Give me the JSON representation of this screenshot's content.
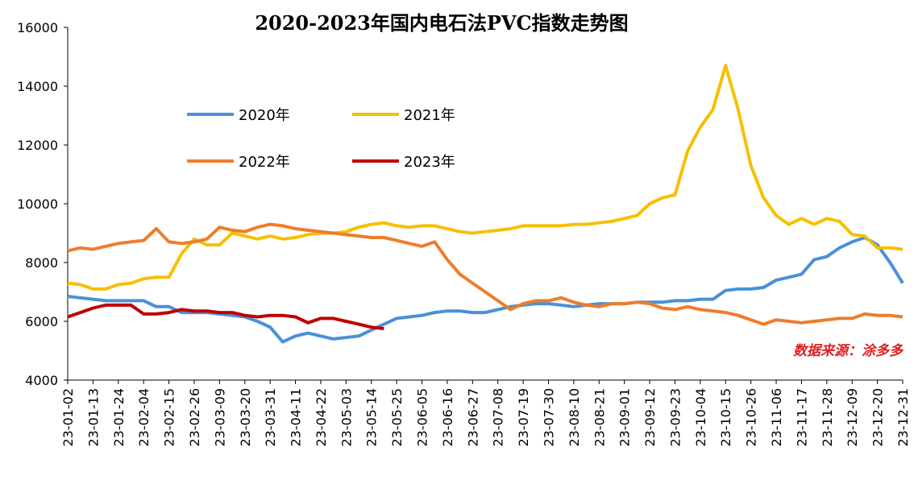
{
  "chart_data": {
    "type": "line",
    "title": "2020-2023年国内电石法PVC指数走势图",
    "annotation": "数据来源：涂多多",
    "categories": [
      "23-01-02",
      null,
      "23-01-13",
      null,
      "23-01-24",
      null,
      "23-02-04",
      null,
      "23-02-15",
      null,
      "23-02-26",
      null,
      "23-03-09",
      null,
      "23-03-20",
      null,
      "23-03-31",
      null,
      "23-04-11",
      null,
      "23-04-22",
      null,
      "23-05-03",
      null,
      "23-05-14",
      null,
      "23-05-25",
      null,
      "23-06-05",
      null,
      "23-06-16",
      null,
      "23-06-27",
      null,
      "23-07-08",
      null,
      "23-07-19",
      null,
      "23-07-30",
      null,
      "23-08-10",
      null,
      "23-08-21",
      null,
      "23-09-01",
      null,
      "23-09-12",
      null,
      "23-09-23",
      null,
      "23-10-04",
      null,
      "23-10-15",
      null,
      "23-10-26",
      null,
      "23-11-06",
      null,
      "23-11-17",
      null,
      "23-11-28",
      null,
      "23-12-09",
      null,
      "23-12-20",
      null,
      "23-12-31"
    ],
    "series": [
      {
        "name": "2020年",
        "color": "#4a90d9",
        "values": [
          6850,
          6800,
          6750,
          6700,
          6700,
          6700,
          6700,
          6500,
          6500,
          6300,
          6300,
          6300,
          6250,
          6200,
          6150,
          6000,
          5800,
          5300,
          5500,
          5600,
          5500,
          5400,
          5450,
          5500,
          5700,
          5900,
          6100,
          6150,
          6200,
          6300,
          6350,
          6350,
          6300,
          6300,
          6400,
          6500,
          6550,
          6600,
          6600,
          6550,
          6500,
          6550,
          6600,
          6600,
          6600,
          6650,
          6650,
          6650,
          6700,
          6700,
          6750,
          6750,
          7050,
          7100,
          7100,
          7150,
          7400,
          7500,
          7600,
          8100,
          8200,
          8500,
          8700,
          8850,
          8600,
          8000,
          7300
        ]
      },
      {
        "name": "2021年",
        "color": "#f5c000",
        "values": [
          7300,
          7250,
          7100,
          7100,
          7250,
          7300,
          7450,
          7500,
          7500,
          8300,
          8800,
          8600,
          8600,
          9000,
          8900,
          8800,
          8900,
          8800,
          8850,
          8950,
          9000,
          9000,
          9050,
          9200,
          9300,
          9350,
          9250,
          9200,
          9250,
          9250,
          9150,
          9050,
          9000,
          9050,
          9100,
          9150,
          9250,
          9250,
          9250,
          9250,
          9300,
          9300,
          9350,
          9400,
          9500,
          9600,
          10000,
          10200,
          10300,
          11800,
          12600,
          13200,
          14700,
          13200,
          11300,
          10200,
          9600,
          9300,
          9500,
          9300,
          9500,
          9400,
          8950,
          8900,
          8500,
          8500,
          8450
        ]
      },
      {
        "name": "2022年",
        "color": "#ee7d2c",
        "values": [
          8400,
          8500,
          8450,
          8550,
          8650,
          8700,
          8750,
          9150,
          8700,
          8650,
          8700,
          8800,
          9200,
          9100,
          9050,
          9200,
          9300,
          9250,
          9150,
          9100,
          9050,
          9000,
          8950,
          8900,
          8850,
          8850,
          8750,
          8650,
          8550,
          8700,
          8100,
          7600,
          7300,
          7000,
          6700,
          6400,
          6600,
          6700,
          6700,
          6800,
          6650,
          6550,
          6500,
          6600,
          6600,
          6650,
          6600,
          6450,
          6400,
          6500,
          6400,
          6350,
          6300,
          6200,
          6050,
          5900,
          6050,
          6000,
          5950,
          6000,
          6050,
          6100,
          6100,
          6250,
          6200,
          6200,
          6150
        ]
      },
      {
        "name": "2023年",
        "color": "#c00000",
        "values": [
          6150,
          6300,
          6450,
          6550,
          6550,
          6550,
          6250,
          6250,
          6300,
          6400,
          6350,
          6350,
          6300,
          6300,
          6200,
          6150,
          6200,
          6200,
          6150,
          5950,
          6100,
          6100,
          6000,
          5900,
          5800,
          5750,
          null,
          null,
          null,
          null,
          null,
          null,
          null,
          null,
          null,
          null,
          null,
          null,
          null,
          null,
          null,
          null,
          null,
          null,
          null,
          null,
          null,
          null,
          null,
          null,
          null,
          null,
          null,
          null,
          null,
          null,
          null,
          null,
          null,
          null,
          null,
          null,
          null,
          null,
          null,
          null,
          null
        ]
      }
    ],
    "ylim": [
      4000,
      16000
    ],
    "yticks": [
      4000,
      6000,
      8000,
      10000,
      12000,
      14000,
      16000
    ]
  }
}
